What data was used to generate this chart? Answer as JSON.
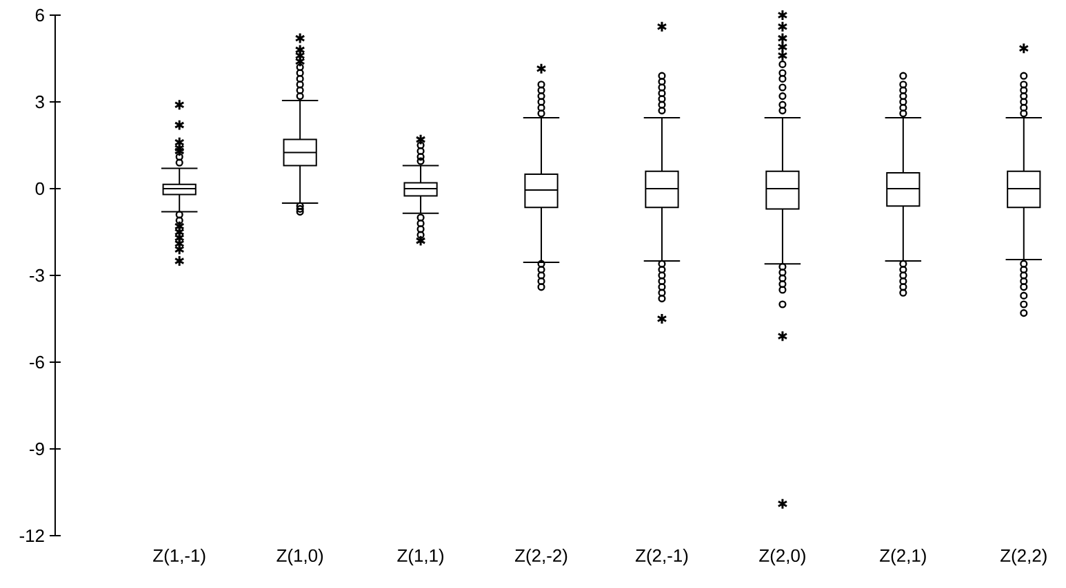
{
  "chart_data": {
    "type": "box",
    "categories": [
      "Z(1,-1)",
      "Z(1,0)",
      "Z(1,1)",
      "Z(2,-2)",
      "Z(2,-1)",
      "Z(2,0)",
      "Z(2,1)",
      "Z(2,2)"
    ],
    "boxes": [
      {
        "low": -0.8,
        "q1": -0.2,
        "median": 0,
        "q3": 0.15,
        "high": 0.7,
        "outliers": [
          2.9,
          2.2,
          1.6,
          1.4,
          1.3,
          1.1,
          0.9,
          -0.9,
          -1.1,
          -1.3,
          -1.5,
          -1.7,
          -1.9,
          -2.1,
          -2.5
        ]
      },
      {
        "low": -0.5,
        "q1": 0.8,
        "median": 1.25,
        "q3": 1.7,
        "high": 3.05,
        "outliers": [
          5.2,
          4.8,
          4.6,
          4.4,
          4.2,
          4.0,
          3.8,
          3.6,
          3.4,
          3.2,
          -0.6,
          -0.7,
          -0.8
        ]
      },
      {
        "low": -0.85,
        "q1": -0.25,
        "median": 0,
        "q3": 0.2,
        "high": 0.8,
        "outliers": [
          1.7,
          1.5,
          1.3,
          1.1,
          0.95,
          -1.0,
          -1.2,
          -1.4,
          -1.6,
          -1.8
        ]
      },
      {
        "low": -2.55,
        "q1": -0.65,
        "median": -0.05,
        "q3": 0.5,
        "high": 2.45,
        "outliers": [
          4.15,
          3.6,
          3.4,
          3.2,
          3.0,
          2.8,
          2.6,
          -2.6,
          -2.8,
          -3.0,
          -3.2,
          -3.4
        ]
      },
      {
        "low": -2.5,
        "q1": -0.65,
        "median": 0,
        "q3": 0.6,
        "high": 2.45,
        "outliers": [
          5.6,
          3.9,
          3.7,
          3.5,
          3.3,
          3.1,
          2.9,
          2.7,
          -2.6,
          -2.8,
          -3.0,
          -3.2,
          -3.4,
          -3.6,
          -3.8,
          -4.5
        ]
      },
      {
        "low": -2.6,
        "q1": -0.7,
        "median": 0,
        "q3": 0.6,
        "high": 2.45,
        "outliers": [
          6.0,
          5.6,
          5.2,
          4.9,
          4.6,
          4.3,
          4.0,
          3.8,
          3.5,
          3.2,
          2.9,
          2.7,
          -2.7,
          -2.9,
          -3.1,
          -3.3,
          -3.5,
          -4.0,
          -5.1,
          -10.9
        ]
      },
      {
        "low": -2.5,
        "q1": -0.6,
        "median": 0,
        "q3": 0.55,
        "high": 2.45,
        "outliers": [
          3.9,
          3.6,
          3.4,
          3.2,
          3.0,
          2.8,
          2.6,
          -2.6,
          -2.8,
          -3.0,
          -3.2,
          -3.4,
          -3.6
        ]
      },
      {
        "low": -2.45,
        "q1": -0.65,
        "median": 0,
        "q3": 0.6,
        "high": 2.45,
        "outliers": [
          4.85,
          3.9,
          3.6,
          3.4,
          3.2,
          3.0,
          2.8,
          2.6,
          -2.6,
          -2.8,
          -3.0,
          -3.2,
          -3.4,
          -3.7,
          -4.0,
          -4.3
        ]
      }
    ],
    "ylim": [
      -12,
      6
    ],
    "yticks": [
      -12,
      -9,
      -6,
      -3,
      0,
      3,
      6
    ]
  }
}
